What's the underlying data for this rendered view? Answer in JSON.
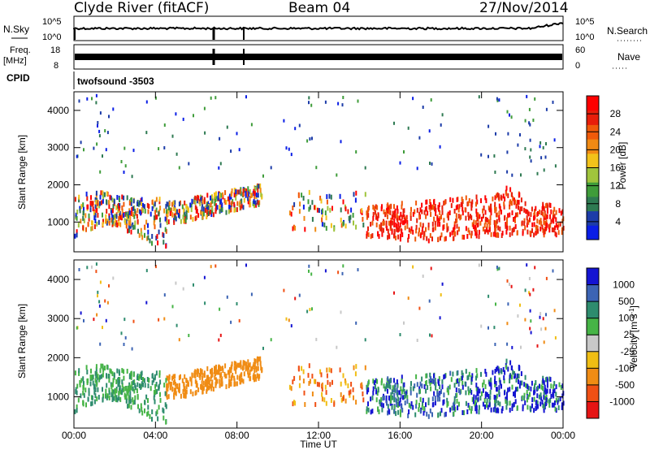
{
  "header": {
    "station": "Clyde River (fitACF)",
    "beam": "Beam 04",
    "date": "27/Nov/2014"
  },
  "top_panels": {
    "nsky_label": "N.Sky",
    "nsky_ticks": [
      "10^5",
      "10^0"
    ],
    "nsearch_label": "N.Search",
    "nsearch_ticks": [
      "10^5",
      "10^0"
    ],
    "freq_label_1": "Freq.",
    "freq_label_2": "[MHz]",
    "freq_ticks": [
      "18",
      "8"
    ],
    "nave_label": "Nave",
    "nave_ticks": [
      "60",
      "0"
    ],
    "cpid_label": "CPID",
    "cpid_value": "twofsound -3503"
  },
  "chart_data": [
    {
      "type": "heatmap",
      "name": "power",
      "ylabel": "Slant Range [km]",
      "ylim": [
        200,
        4500
      ],
      "yticks": [
        "4000",
        "3000",
        "2000",
        "1000"
      ],
      "colorbar_label": "Power [dB]",
      "colorbar_ticks": [
        "28",
        "24",
        "20",
        "16",
        "12",
        "8",
        "4"
      ],
      "colors": [
        "#0a1ee6",
        "#1c3ca8",
        "#2e7a52",
        "#3f9c3a",
        "#a0c43c",
        "#f2c21a",
        "#f08a14",
        "#f05a0a",
        "#e81e0a",
        "#ff0000"
      ],
      "bands": [
        {
          "x": [
            0.0,
            4.5
          ],
          "y": [
            600,
            1900
          ],
          "level": "mixed"
        },
        {
          "x": [
            4.5,
            9.0
          ],
          "y": [
            900,
            2000
          ],
          "level": "mixed"
        },
        {
          "x": [
            14.3,
            23.9
          ],
          "y": [
            500,
            1900
          ],
          "level": "high"
        }
      ]
    },
    {
      "type": "heatmap",
      "name": "velocity",
      "ylabel": "Slant Range [km]",
      "ylim": [
        200,
        4500
      ],
      "yticks": [
        "4000",
        "3000",
        "2000",
        "1000"
      ],
      "colorbar_label": "Velocity [m s^-1]",
      "colorbar_ticks": [
        "1000",
        "500",
        "100",
        "25",
        "-25",
        "-100",
        "-500",
        "-1000"
      ],
      "colors": [
        "#1414d2",
        "#3c64b4",
        "#2e8c6e",
        "#46b446",
        "#c8c8c8",
        "#f0be14",
        "#f08c14",
        "#f05014",
        "#e61414"
      ],
      "xlabel": "Time UT",
      "xticks": [
        "00:00",
        "04:00",
        "08:00",
        "12:00",
        "16:00",
        "20:00",
        "00:00"
      ],
      "xlim": [
        0,
        24
      ]
    }
  ]
}
